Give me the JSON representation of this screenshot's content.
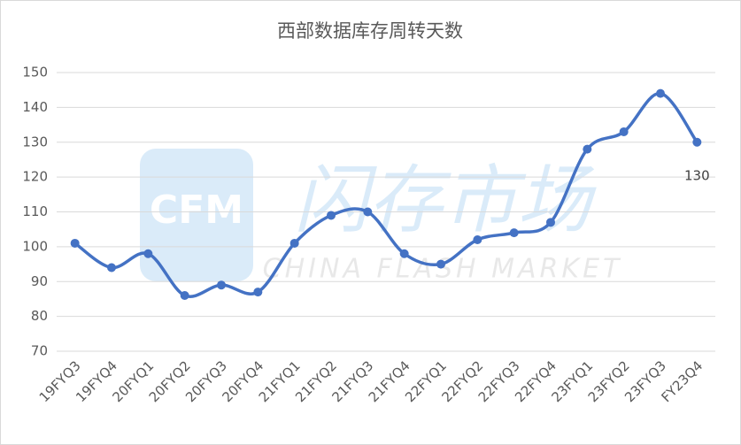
{
  "chart_data": {
    "type": "line",
    "title": "西部数据库存周转天数",
    "categories": [
      "19FYQ3",
      "19FYQ4",
      "20FYQ1",
      "20FYQ2",
      "20FYQ3",
      "20FYQ4",
      "21FYQ1",
      "21FYQ2",
      "21FYQ3",
      "21FYQ4",
      "22FYQ1",
      "22FYQ2",
      "22FYQ3",
      "22FYQ4",
      "23FYQ1",
      "23FYQ2",
      "23FYQ3",
      "FY23Q4"
    ],
    "series": [
      {
        "color": "#4472c4",
        "values": [
          101,
          94,
          98,
          86,
          89,
          87,
          101,
          109,
          110,
          98,
          95,
          102,
          104,
          107,
          128,
          133,
          144,
          130
        ],
        "value_labels": [
          null,
          null,
          null,
          null,
          null,
          null,
          null,
          null,
          null,
          null,
          null,
          null,
          null,
          null,
          null,
          null,
          null,
          "130"
        ]
      }
    ],
    "ylim": [
      70,
      150
    ],
    "yticks": [
      70,
      80,
      90,
      100,
      110,
      120,
      130,
      140,
      150
    ],
    "grid": true,
    "smooth": true,
    "watermark": {
      "logo": "CFM",
      "name": "闪存市场",
      "subtitle": "CHINA FLASH MARKET"
    }
  }
}
